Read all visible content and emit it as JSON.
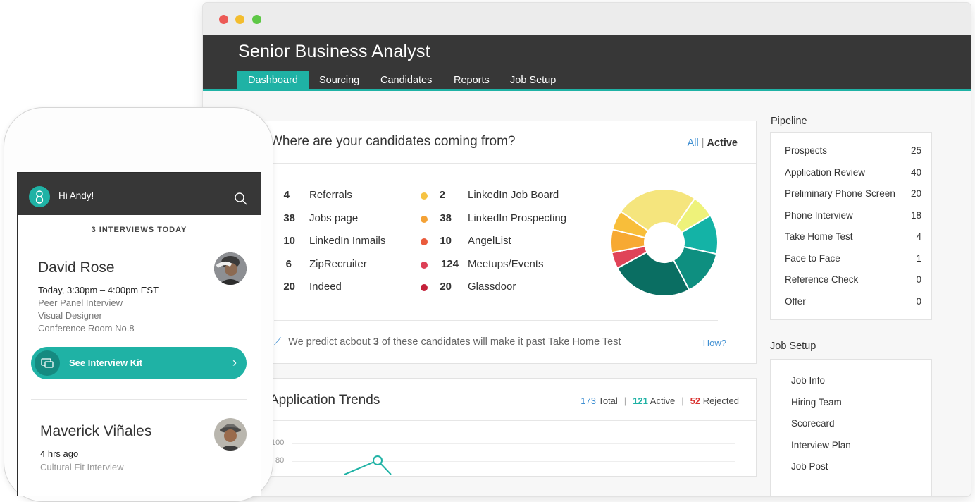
{
  "browser": {
    "window_dots": [
      "#ec5a56",
      "#f3bd2f",
      "#5ec846"
    ]
  },
  "app": {
    "job_title": "Senior Business Analyst",
    "tabs": [
      {
        "label": "Dashboard",
        "active": true
      },
      {
        "label": "Sourcing",
        "active": false
      },
      {
        "label": "Candidates",
        "active": false
      },
      {
        "label": "Reports",
        "active": false
      },
      {
        "label": "Job Setup",
        "active": false
      }
    ],
    "accent": "#1fb2a5"
  },
  "sources": {
    "title": "Where are your candidates coming from?",
    "filter_all": "All",
    "filter_sep": "|",
    "filter_active": "Active",
    "left_items": [
      {
        "count": "4",
        "label": "Referrals"
      },
      {
        "count": "38",
        "label": "Jobs page"
      },
      {
        "count": "10",
        "label": "LinkedIn Inmails"
      },
      {
        "count": "6",
        "label": "ZipRecruiter"
      },
      {
        "count": "20",
        "label": "Indeed"
      }
    ],
    "right_items": [
      {
        "count": "2",
        "label": "LinkedIn Job Board",
        "color": "#f6c343"
      },
      {
        "count": "38",
        "label": "LinkedIn Prospecting",
        "color": "#f4a236"
      },
      {
        "count": "10",
        "label": "AngelList",
        "color": "#ea5b3c"
      },
      {
        "count": "124",
        "label": "Meetups/Events",
        "color": "#dd3f56"
      },
      {
        "count": "20",
        "label": "Glassdoor",
        "color": "#c4213a"
      }
    ],
    "prediction_prefix": "We predict acbout",
    "prediction_number": "3",
    "prediction_suffix": "of these candidates will make it past Take Home Test",
    "how_link": "How?"
  },
  "chart_data": {
    "type": "pie",
    "slices": [
      {
        "value": 25,
        "color": "#f5e57d"
      },
      {
        "value": 7,
        "color": "#eef27a"
      },
      {
        "value": 12,
        "color": "#14b3a6"
      },
      {
        "value": 14,
        "color": "#0e8f80"
      },
      {
        "value": 25,
        "color": "#0a6e62"
      },
      {
        "value": 5,
        "color": "#e04358"
      },
      {
        "value": 7,
        "color": "#f7a932"
      },
      {
        "value": 6,
        "color": "#f8be3a"
      }
    ]
  },
  "trends": {
    "title": "Application Trends",
    "total_value": "173",
    "total_label": "Total",
    "active_value": "121",
    "active_label": "Active",
    "rejected_value": "52",
    "rejected_label": "Rejected",
    "y_ticks": [
      "100",
      "80"
    ]
  },
  "pipeline": {
    "heading": "Pipeline",
    "rows": [
      {
        "label": "Prospects",
        "value": "25"
      },
      {
        "label": "Application Review",
        "value": "40"
      },
      {
        "label": "Preliminary Phone Screen",
        "value": "20"
      },
      {
        "label": "Phone Interview",
        "value": "18"
      },
      {
        "label": "Take Home Test",
        "value": "4"
      },
      {
        "label": "Face to Face",
        "value": "1"
      },
      {
        "label": "Reference Check",
        "value": "0"
      },
      {
        "label": "Offer",
        "value": "0"
      }
    ]
  },
  "job_setup": {
    "heading": "Job Setup",
    "items": [
      "Job Info",
      "Hiring Team",
      "Scorecard",
      "Interview Plan",
      "Job Post"
    ]
  },
  "phone": {
    "greeting": "Hi Andy!",
    "interviews_today": "3 INTERVIEWS TODAY",
    "first": {
      "name": "David Rose",
      "time": "Today, 3:30pm – 4:00pm EST",
      "type": "Peer Panel Interview",
      "role": "Visual Designer",
      "room": "Conference Room No.8"
    },
    "kit_button": "See Interview Kit",
    "second": {
      "name": "Maverick Viñales",
      "time": "4 hrs ago",
      "detail": "Cultural Fit Interview"
    }
  }
}
